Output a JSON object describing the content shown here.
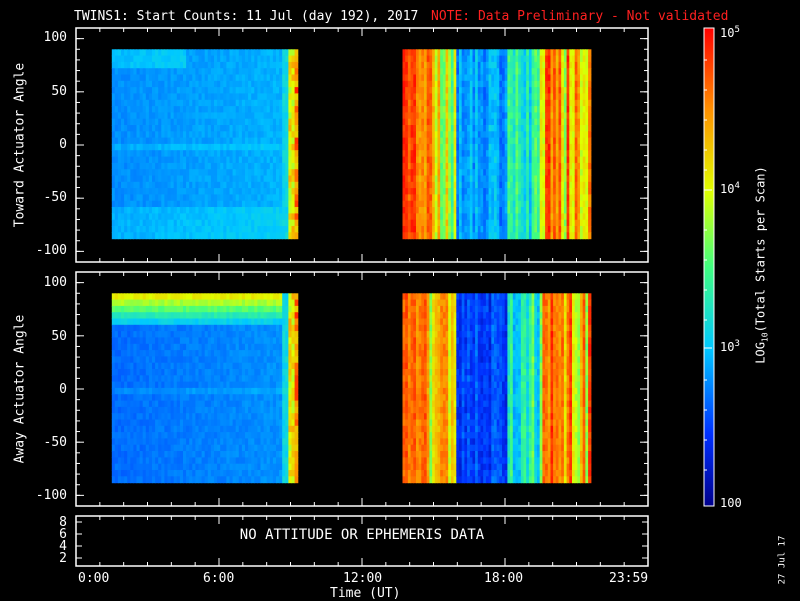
{
  "header": {
    "title": "TWINS1: Start Counts: 11 Jul (day 192), 2017",
    "note": "NOTE: Data Preliminary - Not validated",
    "note_color": "#ff2020"
  },
  "footer": {
    "date_stamp": "27 Jul 17"
  },
  "chart_data": [
    {
      "type": "heatmap",
      "ylabel": "Toward Actuator Angle",
      "ylim": [
        -110,
        110
      ],
      "yticks": [
        "100",
        "50",
        "0",
        "-50",
        "-100"
      ],
      "xlim": [
        0,
        24
      ],
      "data_windows_hours": [
        [
          1.5,
          9.3
        ],
        [
          13.7,
          21.6
        ]
      ],
      "data_angle_range": [
        -88,
        90
      ],
      "color_scale": "log"
    },
    {
      "type": "heatmap",
      "ylabel": "Away Actuator Angle",
      "ylim": [
        -110,
        110
      ],
      "yticks": [
        "100",
        "50",
        "0",
        "-50",
        "-100"
      ],
      "xlim": [
        0,
        24
      ],
      "data_windows_hours": [
        [
          1.5,
          9.3
        ],
        [
          13.7,
          21.6
        ]
      ],
      "data_angle_range": [
        -88,
        90
      ],
      "color_scale": "log"
    },
    {
      "type": "table",
      "yticks": [
        "8",
        "6",
        "4",
        "2"
      ],
      "message": "NO ATTITUDE OR EPHEMERIS DATA"
    }
  ],
  "xaxis": {
    "label": "Time (UT)",
    "ticks": [
      "0:00",
      "6:00",
      "12:00",
      "18:00",
      "23:59"
    ]
  },
  "colorbar": {
    "label_prefix": "LOG",
    "label_sub": "10",
    "label_suffix": "(Total Starts per Scan)",
    "ticks": [
      {
        "base": "10",
        "exp": "5"
      },
      {
        "base": "10",
        "exp": "4"
      },
      {
        "base": "10",
        "exp": "3"
      },
      {
        "base": "100",
        "exp": ""
      }
    ]
  }
}
